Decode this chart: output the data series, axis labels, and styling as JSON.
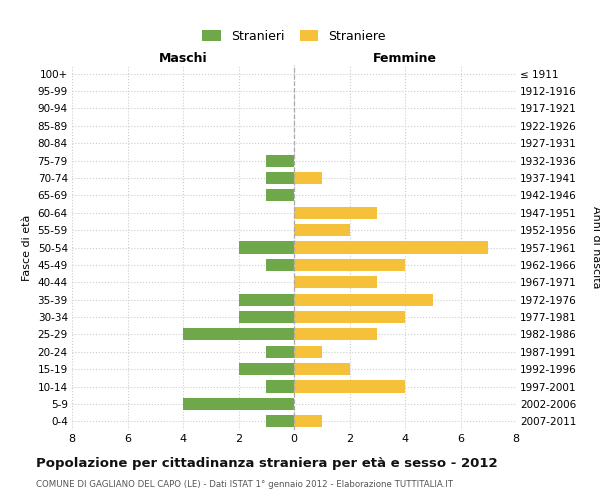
{
  "age_groups": [
    "100+",
    "95-99",
    "90-94",
    "85-89",
    "80-84",
    "75-79",
    "70-74",
    "65-69",
    "60-64",
    "55-59",
    "50-54",
    "45-49",
    "40-44",
    "35-39",
    "30-34",
    "25-29",
    "20-24",
    "15-19",
    "10-14",
    "5-9",
    "0-4"
  ],
  "birth_years": [
    "≤ 1911",
    "1912-1916",
    "1917-1921",
    "1922-1926",
    "1927-1931",
    "1932-1936",
    "1937-1941",
    "1942-1946",
    "1947-1951",
    "1952-1956",
    "1957-1961",
    "1962-1966",
    "1967-1971",
    "1972-1976",
    "1977-1981",
    "1982-1986",
    "1987-1991",
    "1992-1996",
    "1997-2001",
    "2002-2006",
    "2007-2011"
  ],
  "maschi": [
    0,
    0,
    0,
    0,
    0,
    1,
    1,
    1,
    0,
    0,
    2,
    1,
    0,
    2,
    2,
    4,
    1,
    2,
    1,
    4,
    1
  ],
  "femmine": [
    0,
    0,
    0,
    0,
    0,
    0,
    1,
    0,
    3,
    2,
    7,
    4,
    3,
    5,
    4,
    3,
    1,
    2,
    4,
    0,
    1
  ],
  "color_maschi": "#6fa84a",
  "color_femmine": "#f5c03a",
  "title": "Popolazione per cittadinanza straniera per età e sesso - 2012",
  "subtitle": "COMUNE DI GAGLIANO DEL CAPO (LE) - Dati ISTAT 1° gennaio 2012 - Elaborazione TUTTITALIA.IT",
  "legend_maschi": "Stranieri",
  "legend_femmine": "Straniere",
  "label_left": "Maschi",
  "label_right": "Femmine",
  "ylabel_left": "Fasce di età",
  "ylabel_right": "Anni di nascita",
  "xlim": 8,
  "bg_color": "#ffffff",
  "grid_color": "#cccccc",
  "bar_height": 0.7
}
